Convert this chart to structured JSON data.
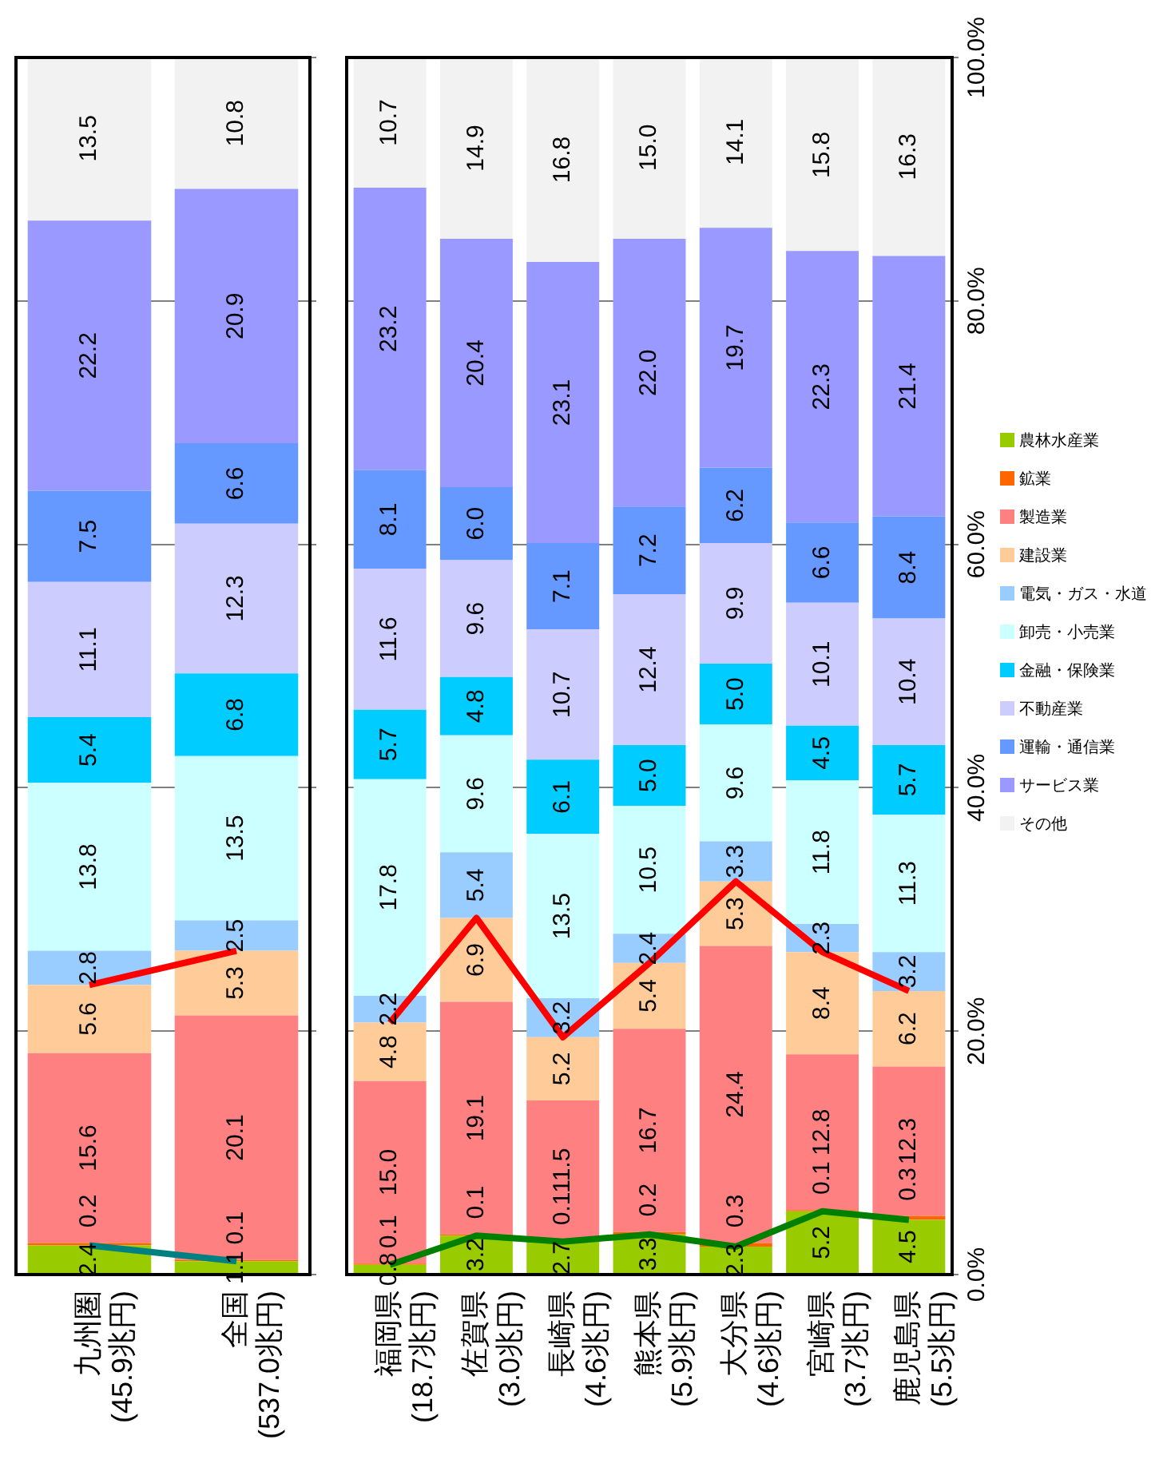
{
  "chart_data": [
    {
      "type": "bar",
      "stacked": true,
      "categories": [
        "九州圏\n(45.9兆円)",
        "全国\n(537.0兆円)"
      ],
      "ylim": [
        0,
        100
      ],
      "tick_labels": "x",
      "grid": "y",
      "series": [
        {
          "color": "#99cc00",
          "values": [
            2.4,
            1.1
          ],
          "value_labels": [
            "2.4",
            "1.1"
          ]
        },
        {
          "color": "#ff6600",
          "values": [
            0.2,
            0.1
          ],
          "value_labels": [
            "0.2",
            "0.1"
          ]
        },
        {
          "color": "#ff8080",
          "values": [
            15.6,
            20.1
          ],
          "value_labels": [
            "15.6",
            "20.1"
          ]
        },
        {
          "color": "#ffcc99",
          "values": [
            5.6,
            5.3
          ],
          "value_labels": [
            "5.6",
            "5.3"
          ]
        },
        {
          "color": "#99ccff",
          "values": [
            2.8,
            2.5
          ],
          "value_labels": [
            "2.8",
            "2.5"
          ]
        },
        {
          "color": "#ccffff",
          "values": [
            13.8,
            13.5
          ],
          "value_labels": [
            "13.8",
            "13.5"
          ]
        },
        {
          "color": "#00ccff",
          "values": [
            5.4,
            6.8
          ],
          "value_labels": [
            "5.4",
            "6.8"
          ]
        },
        {
          "color": "#ccccff",
          "values": [
            11.1,
            12.3
          ],
          "value_labels": [
            "11.1",
            "12.3"
          ]
        },
        {
          "color": "#6699ff",
          "values": [
            7.5,
            6.6
          ],
          "value_labels": [
            "7.5",
            "6.6"
          ]
        },
        {
          "color": "#9999ff",
          "values": [
            22.2,
            20.9
          ],
          "value_labels": [
            "22.2",
            "20.9"
          ]
        },
        {
          "color": "#f2f2f2",
          "values": [
            13.5,
            10.8
          ],
          "value_labels": [
            "13.5",
            "10.8"
          ]
        },
        {
          "type": "line",
          "color": "#008080",
          "values": [
            2.4,
            1.1
          ]
        },
        {
          "type": "line",
          "color": "#ff0000",
          "values": [
            23.8,
            26.6
          ]
        }
      ]
    },
    {
      "type": "bar",
      "stacked": true,
      "categories": [
        "福岡県\n(18.7兆円)",
        "佐賀県\n(3.0兆円)",
        "長崎県\n(4.6兆円)",
        "熊本県\n(5.9兆円)",
        "大分県\n(4.6兆円)",
        "宮崎県\n(3.7兆円)",
        "鹿児島県\n(5.5兆円)"
      ],
      "ylim": [
        0,
        100
      ],
      "yticks": [
        {
          "value": 0,
          "label": "0.0%"
        },
        {
          "value": 20,
          "label": "20.0%"
        },
        {
          "value": 40,
          "label": "40.0%"
        },
        {
          "value": 60,
          "label": "60.0%"
        },
        {
          "value": 80,
          "label": "80.0%"
        },
        {
          "value": 100,
          "label": "100.0%"
        }
      ],
      "grid": "y",
      "legend": "right",
      "series": [
        {
          "name": "農林水産業",
          "color": "#99cc00",
          "values": [
            0.8,
            3.2,
            2.7,
            3.3,
            2.3,
            5.2,
            4.5
          ],
          "value_labels": [
            "0.8",
            "3.2",
            "2.7",
            "3.3",
            "2.3",
            "5.2",
            "4.5"
          ]
        },
        {
          "name": "鉱業",
          "color": "#ff6600",
          "values": [
            0.1,
            0.1,
            0.1,
            0.2,
            0.3,
            0.1,
            0.3
          ],
          "value_labels": [
            "0.1",
            "0.1",
            "0.1",
            "0.2",
            "0.3",
            "0.1",
            "0.3"
          ]
        },
        {
          "name": "製造業",
          "color": "#ff8080",
          "values": [
            15.0,
            19.1,
            11.5,
            16.7,
            24.4,
            12.8,
            12.3
          ],
          "value_labels": [
            "15.0",
            "19.1",
            "11.5",
            "16.7",
            "24.4",
            "12.8",
            "12.3"
          ]
        },
        {
          "name": "建設業",
          "color": "#ffcc99",
          "values": [
            4.8,
            6.9,
            5.2,
            5.4,
            5.3,
            8.4,
            6.2
          ],
          "value_labels": [
            "4.8",
            "6.9",
            "5.2",
            "5.4",
            "5.3",
            "8.4",
            "6.2"
          ]
        },
        {
          "name": "電気・ガス・水道",
          "color": "#99ccff",
          "values": [
            2.2,
            5.4,
            3.2,
            2.4,
            3.3,
            2.3,
            3.2
          ],
          "value_labels": [
            "2.2",
            "5.4",
            "3.2",
            "2.4",
            "3.3",
            "2.3",
            "3.2"
          ]
        },
        {
          "name": "卸売・小売業",
          "color": "#ccffff",
          "values": [
            17.8,
            9.6,
            13.5,
            10.5,
            9.6,
            11.8,
            11.3
          ],
          "value_labels": [
            "17.8",
            "9.6",
            "13.5",
            "10.5",
            "9.6",
            "11.8",
            "11.3"
          ]
        },
        {
          "name": "金融・保険業",
          "color": "#00ccff",
          "values": [
            5.7,
            4.8,
            6.1,
            5.0,
            5.0,
            4.5,
            5.7
          ],
          "value_labels": [
            "5.7",
            "4.8",
            "6.1",
            "5.0",
            "5.0",
            "4.5",
            "5.7"
          ]
        },
        {
          "name": "不動産業",
          "color": "#ccccff",
          "values": [
            11.6,
            9.6,
            10.7,
            12.4,
            9.9,
            10.1,
            10.4
          ],
          "value_labels": [
            "11.6",
            "9.6",
            "10.7",
            "12.4",
            "9.9",
            "10.1",
            "10.4"
          ]
        },
        {
          "name": "運輸・通信業",
          "color": "#6699ff",
          "values": [
            8.1,
            6.0,
            7.1,
            7.2,
            6.2,
            6.6,
            8.4
          ],
          "value_labels": [
            "8.1",
            "6.0",
            "7.1",
            "7.2",
            "6.2",
            "6.6",
            "8.4"
          ]
        },
        {
          "name": "サービス業",
          "color": "#9999ff",
          "values": [
            23.2,
            20.4,
            23.1,
            22.0,
            19.7,
            22.3,
            21.4
          ],
          "value_labels": [
            "23.2",
            "20.4",
            "23.1",
            "22.0",
            "19.7",
            "22.3",
            "21.4"
          ]
        },
        {
          "name": "その他",
          "color": "#f2f2f2",
          "values": [
            10.7,
            14.9,
            16.8,
            15.0,
            14.1,
            15.8,
            16.3
          ],
          "value_labels": [
            "10.7",
            "14.9",
            "16.8",
            "15.0",
            "14.1",
            "15.8",
            "16.3"
          ]
        },
        {
          "type": "line",
          "color": "#008000",
          "values": [
            0.8,
            3.2,
            2.7,
            3.3,
            2.3,
            5.2,
            4.5
          ]
        },
        {
          "type": "line",
          "color": "#ff0000",
          "values": [
            20.7,
            29.3,
            19.5,
            25.6,
            32.3,
            26.5,
            23.3
          ]
        }
      ]
    }
  ]
}
